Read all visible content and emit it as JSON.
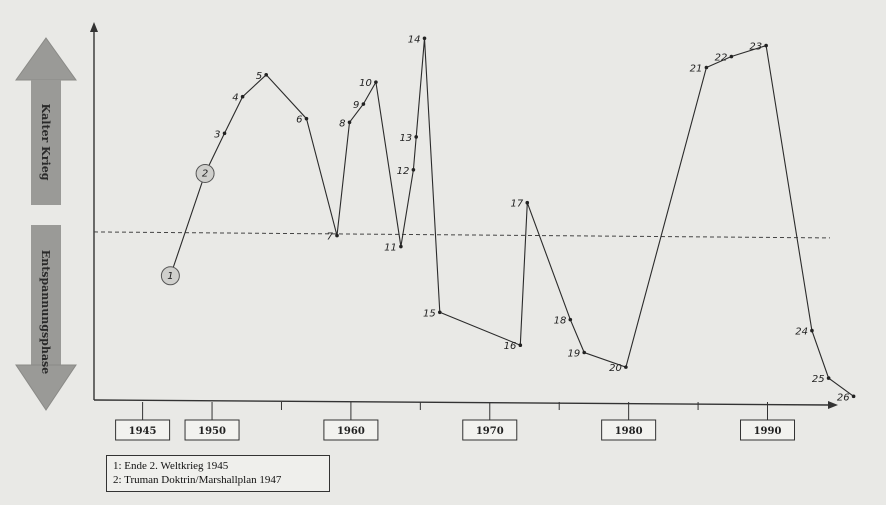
{
  "chart_data": {
    "type": "line",
    "y_axis": {
      "upper_label": "Kalter Krieg",
      "lower_label": "Entspannungsphase"
    },
    "x_tick_labels": [
      "1945",
      "1950",
      "1960",
      "1970",
      "1980",
      "1990"
    ],
    "x_tick_values": [
      1945,
      1950,
      1960,
      1970,
      1980,
      1990
    ],
    "xlim": [
      1941.5,
      1994.5
    ],
    "ylim": [
      -4.6,
      5.8
    ],
    "threshold_line": {
      "style": "dashed",
      "value": 0
    },
    "grid": false,
    "points": [
      {
        "label": "1",
        "x": 1947.0,
        "y": -1.2,
        "style": "circle"
      },
      {
        "label": "2",
        "x": 1949.5,
        "y": 1.6,
        "style": "circle"
      },
      {
        "label": "3",
        "x": 1950.9,
        "y": 2.7
      },
      {
        "label": "4",
        "x": 1952.2,
        "y": 3.7
      },
      {
        "label": "5",
        "x": 1953.9,
        "y": 4.3
      },
      {
        "label": "6",
        "x": 1956.8,
        "y": 3.1
      },
      {
        "label": "7",
        "x": 1959.0,
        "y": -0.1
      },
      {
        "label": "8",
        "x": 1959.9,
        "y": 3.0
      },
      {
        "label": "9",
        "x": 1960.9,
        "y": 3.5
      },
      {
        "label": "10",
        "x": 1961.8,
        "y": 4.1
      },
      {
        "label": "11",
        "x": 1963.6,
        "y": -0.4
      },
      {
        "label": "12",
        "x": 1964.5,
        "y": 1.7
      },
      {
        "label": "13",
        "x": 1964.7,
        "y": 2.6
      },
      {
        "label": "14",
        "x": 1965.3,
        "y": 5.3
      },
      {
        "label": "15",
        "x": 1966.4,
        "y": -2.2
      },
      {
        "label": "16",
        "x": 1972.2,
        "y": -3.1
      },
      {
        "label": "17",
        "x": 1972.7,
        "y": 0.8
      },
      {
        "label": "18",
        "x": 1975.8,
        "y": -2.4
      },
      {
        "label": "19",
        "x": 1976.8,
        "y": -3.3
      },
      {
        "label": "20",
        "x": 1979.8,
        "y": -3.7
      },
      {
        "label": "21",
        "x": 1985.6,
        "y": 4.5
      },
      {
        "label": "22",
        "x": 1987.4,
        "y": 4.8
      },
      {
        "label": "23",
        "x": 1989.9,
        "y": 5.1
      },
      {
        "label": "24",
        "x": 1993.2,
        "y": -2.7
      },
      {
        "label": "25",
        "x": 1994.4,
        "y": -4.0
      },
      {
        "label": "26",
        "x": 1996.2,
        "y": -4.5
      }
    ],
    "legend": [
      "1: Ende 2. Weltkrieg 1945",
      "2: Truman Doktrin/Marshallplan  1947"
    ]
  },
  "colors": {
    "background": "#e9e9e6",
    "arrow_fill": "#9a9a97",
    "line": "#2b2b2b",
    "circle_fill": "#cfcfcc"
  }
}
